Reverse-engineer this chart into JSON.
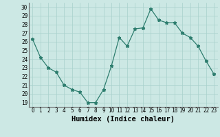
{
  "x": [
    0,
    1,
    2,
    3,
    4,
    5,
    6,
    7,
    8,
    9,
    10,
    11,
    12,
    13,
    14,
    15,
    16,
    17,
    18,
    19,
    20,
    21,
    22,
    23
  ],
  "y": [
    26.3,
    24.2,
    23.0,
    22.5,
    21.0,
    20.5,
    20.2,
    19.0,
    19.0,
    20.5,
    23.2,
    26.5,
    25.5,
    27.5,
    27.6,
    29.8,
    28.5,
    28.2,
    28.2,
    27.0,
    26.5,
    25.5,
    23.8,
    22.3
  ],
  "xlabel": "Humidex (Indice chaleur)",
  "ylim": [
    18.5,
    30.5
  ],
  "xlim": [
    -0.5,
    23.5
  ],
  "yticks": [
    19,
    20,
    21,
    22,
    23,
    24,
    25,
    26,
    27,
    28,
    29,
    30
  ],
  "xticks": [
    0,
    1,
    2,
    3,
    4,
    5,
    6,
    7,
    8,
    9,
    10,
    11,
    12,
    13,
    14,
    15,
    16,
    17,
    18,
    19,
    20,
    21,
    22,
    23
  ],
  "line_color": "#2d7d6e",
  "marker": "*",
  "marker_size": 3.5,
  "bg_color": "#cce8e4",
  "grid_color": "#a8d0cb",
  "xlabel_fontsize": 7.5,
  "tick_fontsize": 5.5
}
